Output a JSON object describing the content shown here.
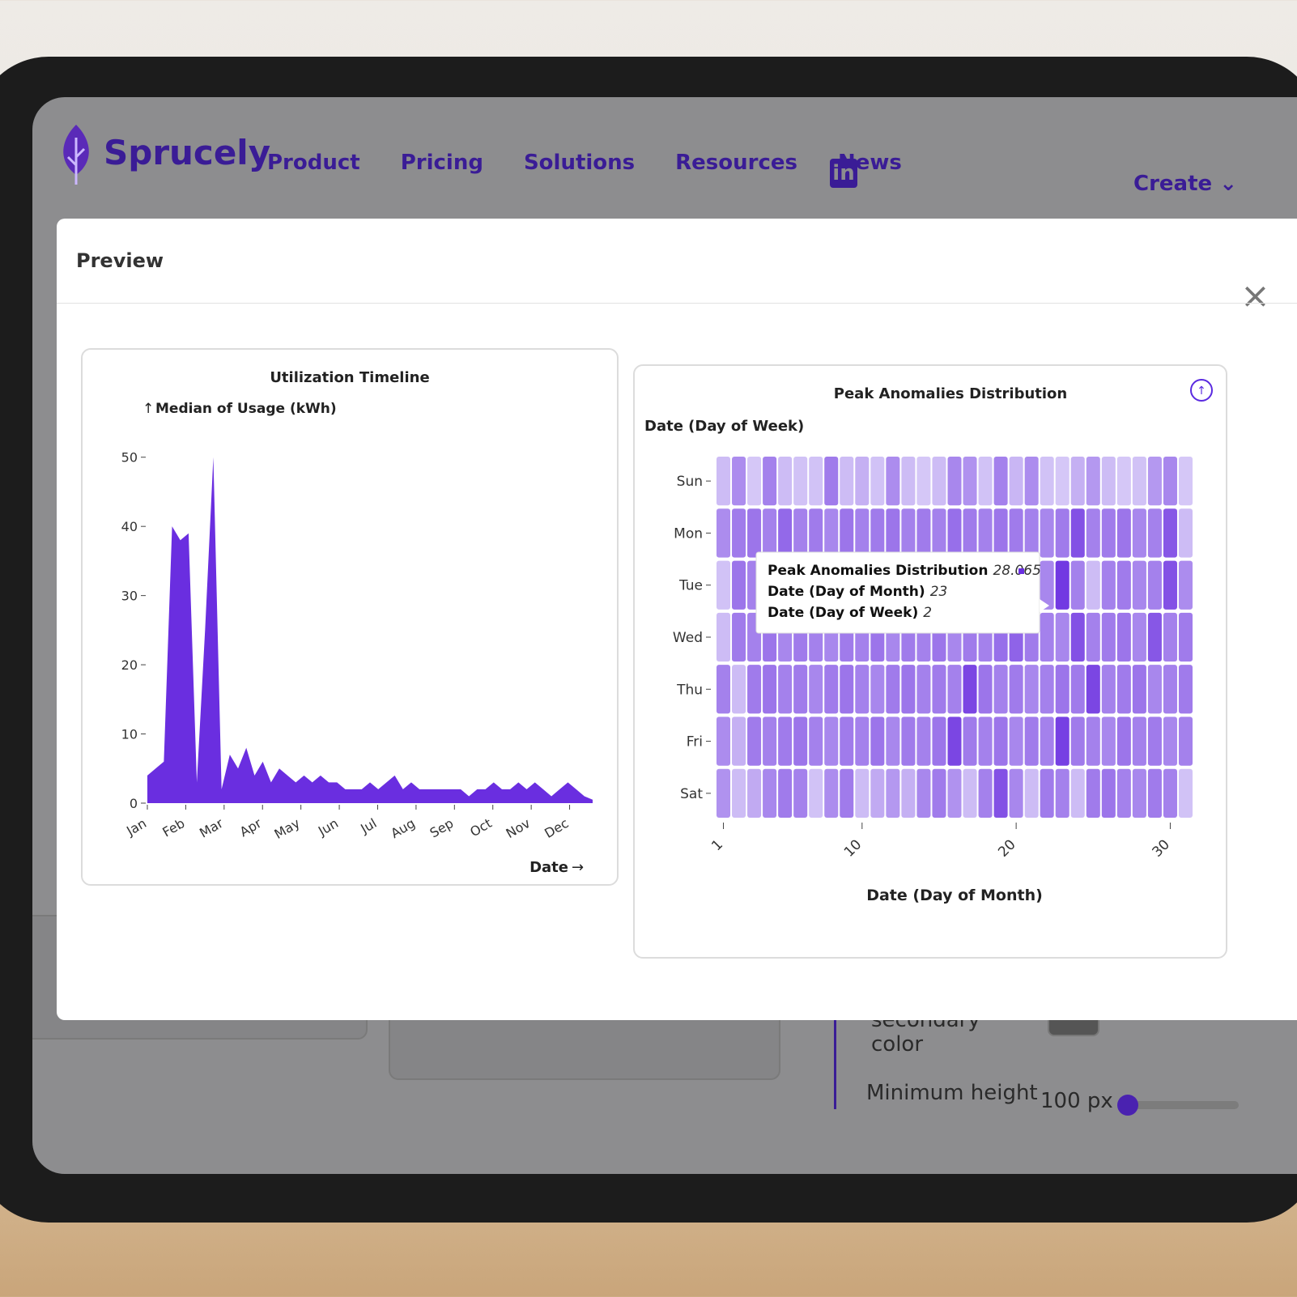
{
  "nav": {
    "brand": "Sprucely",
    "links": [
      "Product",
      "Pricing",
      "Solutions",
      "Resources",
      "News"
    ],
    "linkedin": "in",
    "create": "Create"
  },
  "modal": {
    "title": "Preview"
  },
  "settings": {
    "secondary_color_label": "Theme secondary color",
    "min_height_label": "Minimum height",
    "min_height_value": "100 px"
  },
  "tooltip": {
    "title": "Peak Anomalies Distribution",
    "value": 28.065,
    "x_label": "Date (Day of Month)",
    "x_value": 23,
    "y_label": "Date (Day of Week)",
    "y_value": 2
  },
  "chart_data": [
    {
      "type": "area",
      "title": "Utilization Timeline",
      "ylabel": "Median of Usage (kWh)",
      "xlabel": "Date",
      "xticks": [
        "Jan",
        "Feb",
        "Mar",
        "Apr",
        "May",
        "Jun",
        "Jul",
        "Aug",
        "Sep",
        "Oct",
        "Nov",
        "Dec"
      ],
      "values": [
        4,
        5,
        6,
        40,
        38,
        39,
        3,
        25,
        50,
        2,
        7,
        5,
        8,
        4,
        6,
        3,
        5,
        4,
        3,
        4,
        3,
        4,
        3,
        3,
        2,
        2,
        2,
        3,
        2,
        3,
        4,
        2,
        3,
        2,
        2,
        2,
        2,
        2,
        2,
        1,
        2,
        2,
        3,
        2,
        2,
        3,
        2,
        3,
        2,
        1,
        2,
        3,
        2,
        1,
        0.5
      ],
      "color": "#6a2ee0",
      "ylim": [
        0,
        55
      ],
      "yticks": [
        0,
        10,
        20,
        30,
        40,
        50
      ]
    },
    {
      "type": "heatmap",
      "title": "Peak Anomalies Distribution",
      "xlabel": "Date (Day of Month)",
      "ylabel": "Date (Day of Week)",
      "categories": [
        "Sun",
        "Mon",
        "Tue",
        "Wed",
        "Thu",
        "Fri",
        "Sat"
      ],
      "x": [
        1,
        2,
        3,
        4,
        5,
        6,
        7,
        8,
        9,
        10,
        11,
        12,
        13,
        14,
        15,
        16,
        17,
        18,
        19,
        20,
        21,
        22,
        23,
        24,
        25,
        26,
        27,
        28,
        29,
        30,
        31
      ],
      "xlim": [
        0.5,
        31.5
      ],
      "xticks": [
        1,
        10,
        20,
        30
      ],
      "zlim": [
        0,
        30
      ],
      "color_range": [
        "#e6dffa",
        "#6a2ee0"
      ],
      "values": [
        [
          6,
          14,
          4,
          16,
          6,
          5,
          5,
          17,
          6,
          8,
          5,
          14,
          6,
          4,
          6,
          15,
          13,
          5,
          16,
          7,
          14,
          5,
          4,
          8,
          12,
          6,
          4,
          5,
          12,
          15,
          4
        ],
        [
          14,
          17,
          18,
          16,
          20,
          16,
          17,
          15,
          18,
          16,
          17,
          18,
          16,
          17,
          16,
          19,
          17,
          16,
          18,
          17,
          16,
          15,
          17,
          24,
          16,
          17,
          18,
          15,
          16,
          23,
          6
        ],
        [
          5,
          18,
          16,
          15,
          17,
          16,
          18,
          15,
          16,
          17,
          15,
          16,
          18,
          17,
          16,
          15,
          17,
          16,
          18,
          17,
          16,
          15,
          28.065,
          16,
          6,
          16,
          17,
          15,
          16,
          24,
          14
        ],
        [
          6,
          17,
          16,
          18,
          15,
          17,
          16,
          15,
          17,
          16,
          18,
          15,
          17,
          16,
          18,
          15,
          17,
          16,
          19,
          21,
          17,
          16,
          15,
          24,
          16,
          17,
          18,
          15,
          23,
          16,
          17
        ],
        [
          16,
          6,
          17,
          18,
          16,
          17,
          15,
          17,
          18,
          16,
          15,
          17,
          18,
          16,
          17,
          16,
          26,
          18,
          16,
          17,
          15,
          16,
          18,
          17,
          26,
          16,
          17,
          18,
          15,
          16,
          17
        ],
        [
          14,
          8,
          17,
          16,
          17,
          18,
          16,
          15,
          17,
          16,
          18,
          15,
          17,
          16,
          18,
          26,
          17,
          16,
          18,
          15,
          17,
          16,
          27,
          17,
          16,
          15,
          18,
          16,
          17,
          15,
          16
        ],
        [
          13,
          6,
          9,
          15,
          17,
          16,
          5,
          14,
          17,
          6,
          9,
          12,
          8,
          15,
          17,
          13,
          6,
          16,
          24,
          15,
          6,
          17,
          16,
          6,
          17,
          18,
          16,
          15,
          17,
          16,
          5
        ]
      ]
    }
  ]
}
